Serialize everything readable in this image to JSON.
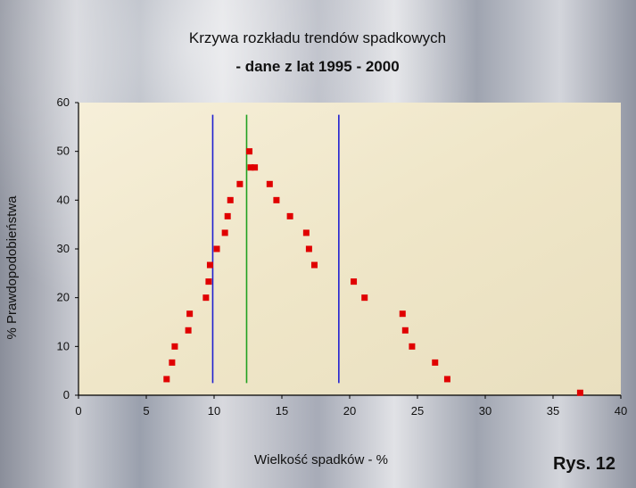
{
  "chart_data": {
    "type": "scatter",
    "title_line1": "Krzywa rozkładu trendów spadkowych",
    "title_line2": "- dane z lat 1995 - 2000",
    "xlabel": "Wielkość spadków -  %",
    "ylabel": "% Prawdopodobieństwa",
    "figure_label": "Rys. 12",
    "xlim": [
      0,
      40
    ],
    "ylim": [
      0,
      60
    ],
    "x_ticks": [
      0,
      5,
      10,
      15,
      20,
      25,
      30,
      35,
      40
    ],
    "y_ticks": [
      0,
      10,
      20,
      30,
      40,
      50,
      60
    ],
    "grid": false,
    "marker_color": "#e00000",
    "points": [
      {
        "x": 6.5,
        "y": 3.3
      },
      {
        "x": 6.9,
        "y": 6.7
      },
      {
        "x": 7.1,
        "y": 10.0
      },
      {
        "x": 8.1,
        "y": 13.3
      },
      {
        "x": 8.2,
        "y": 16.7
      },
      {
        "x": 9.4,
        "y": 20.0
      },
      {
        "x": 9.6,
        "y": 23.3
      },
      {
        "x": 9.7,
        "y": 26.7
      },
      {
        "x": 10.2,
        "y": 30.0
      },
      {
        "x": 10.8,
        "y": 33.3
      },
      {
        "x": 11.0,
        "y": 36.7
      },
      {
        "x": 11.2,
        "y": 40.0
      },
      {
        "x": 11.9,
        "y": 43.3
      },
      {
        "x": 12.6,
        "y": 50.0
      },
      {
        "x": 12.7,
        "y": 46.7
      },
      {
        "x": 13.0,
        "y": 46.7
      },
      {
        "x": 14.1,
        "y": 43.3
      },
      {
        "x": 14.6,
        "y": 40.0
      },
      {
        "x": 15.6,
        "y": 36.7
      },
      {
        "x": 16.8,
        "y": 33.3
      },
      {
        "x": 17.0,
        "y": 30.0
      },
      {
        "x": 17.4,
        "y": 26.7
      },
      {
        "x": 20.3,
        "y": 23.3
      },
      {
        "x": 21.1,
        "y": 20.0
      },
      {
        "x": 23.9,
        "y": 16.7
      },
      {
        "x": 24.1,
        "y": 13.3
      },
      {
        "x": 24.6,
        "y": 10.0
      },
      {
        "x": 26.3,
        "y": 6.7
      },
      {
        "x": 27.2,
        "y": 3.3
      },
      {
        "x": 37.0,
        "y": 0.5
      }
    ],
    "reference_lines": [
      {
        "x": 9.9,
        "y_range": [
          2.5,
          57.5
        ],
        "color": "#2020d0"
      },
      {
        "x": 12.4,
        "y_range": [
          2.5,
          57.5
        ],
        "color": "#20a020"
      },
      {
        "x": 19.2,
        "y_range": [
          2.5,
          57.5
        ],
        "color": "#2020d0"
      }
    ]
  },
  "colors": {
    "plot_background": "#efe6c8",
    "axis": "#000000",
    "text": "#111111"
  }
}
